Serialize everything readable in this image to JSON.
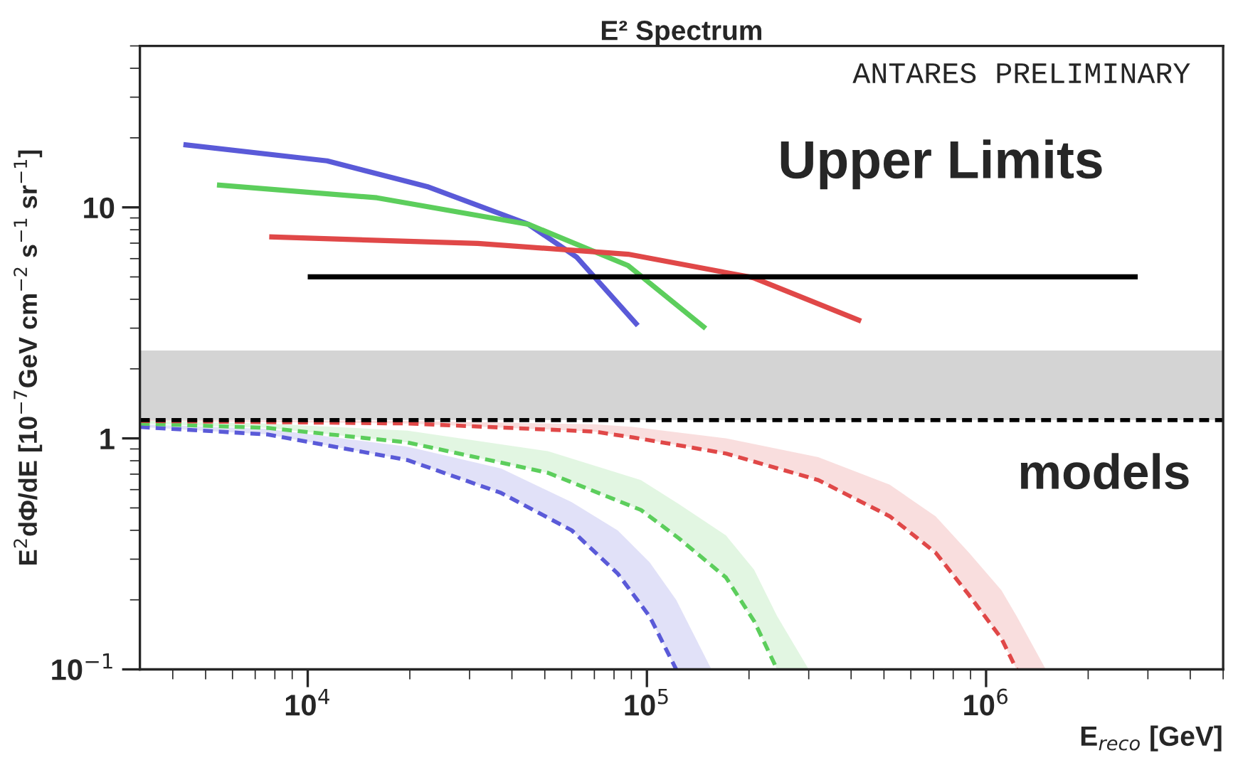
{
  "chart_data": {
    "type": "line",
    "title": "E² Spectrum",
    "xlabel": "E$_{reco}$ [GeV]",
    "ylabel": "E$^{2}$dΦ/dE [10$^{−7}$GeV cm$^{−2}$ s$^{−1}$ sr$^{−1}$]",
    "annotations": [
      "ANTARES PRELIMINARY",
      "Upper Limits",
      "models"
    ],
    "log": "xy",
    "grid": false,
    "xlim": [
      3200,
      5000000
    ],
    "ylim": [
      0.1,
      50
    ],
    "xticks": [
      {
        "value": 10000,
        "label": "10$^{4}$"
      },
      {
        "value": 100000,
        "label": "10$^{5}$"
      },
      {
        "value": 1000000,
        "label": "10$^{6}$"
      }
    ],
    "yticks": [
      {
        "value": 0.1,
        "label": "10$^{−1}$"
      },
      1,
      10
    ],
    "bands": [
      {
        "axis": "y",
        "from": 1.2,
        "to": 2.4,
        "color": "#a0a0a0"
      }
    ],
    "ref_lines": [
      {
        "axis": "y",
        "value": 1.2,
        "color": "#000000",
        "line_style": "dashed"
      }
    ],
    "series": [
      {
        "color": "#5a5ad8",
        "line_style": "solid",
        "x": [
          4300,
          11400,
          22500,
          44700,
          62000,
          94000
        ],
        "values": [
          18.7,
          15.9,
          12.3,
          8.45,
          6.1,
          3.08
        ]
      },
      {
        "color": "#5cce5c",
        "line_style": "solid",
        "x": [
          5400,
          16000,
          44700,
          88000,
          149000
        ],
        "values": [
          12.5,
          11,
          8.45,
          5.6,
          2.99
        ]
      },
      {
        "color": "#e04848",
        "line_style": "solid",
        "x": [
          7700,
          31700,
          88000,
          206000,
          428000
        ],
        "values": [
          7.45,
          6.98,
          6.27,
          4.96,
          3.22
        ]
      },
      {
        "color": "#000000",
        "line_style": "solid",
        "x": [
          10000,
          2800000
        ],
        "values": [
          5.0,
          5.0
        ]
      },
      {
        "color": "#5a5ad8",
        "line_style": "dashed",
        "x": [
          3200,
          7600,
          19700,
          37200,
          60000,
          82000,
          102000,
          122000,
          155000
        ],
        "values": [
          1.12,
          1.04,
          0.805,
          0.58,
          0.4,
          0.26,
          0.169,
          0.1,
          null
        ],
        "lower": [
          1.12,
          1.04,
          0.805,
          0.58,
          0.4,
          0.26,
          0.169,
          0.1,
          0.1
        ],
        "upper": [
          1.15,
          1.1,
          0.92,
          0.74,
          0.53,
          0.4,
          0.29,
          0.2,
          0.1
        ]
      },
      {
        "color": "#5cce5c",
        "line_style": "dashed",
        "x": [
          3200,
          7600,
          19700,
          51000,
          96000,
          124000,
          171000,
          207000,
          242000,
          300000
        ],
        "values": [
          1.16,
          1.11,
          0.96,
          0.71,
          0.49,
          0.37,
          0.25,
          0.162,
          0.1,
          null
        ],
        "lower": [
          1.16,
          1.11,
          0.96,
          0.71,
          0.49,
          0.37,
          0.25,
          0.162,
          0.1,
          0.1
        ],
        "upper": [
          1.19,
          1.16,
          1.08,
          0.88,
          0.66,
          0.52,
          0.38,
          0.27,
          0.17,
          0.1
        ]
      },
      {
        "color": "#e04848",
        "line_style": "dashed",
        "x": [
          3200,
          19700,
          70000,
          91000,
          171000,
          320000,
          520000,
          710000,
          890000,
          1110000,
          1230000,
          1500000
        ],
        "values": [
          1.19,
          1.16,
          1.07,
          1.01,
          0.86,
          0.66,
          0.46,
          0.32,
          0.21,
          0.136,
          0.1,
          null
        ],
        "lower": [
          1.19,
          1.16,
          1.07,
          1.01,
          0.86,
          0.66,
          0.46,
          0.32,
          0.21,
          0.136,
          0.1,
          0.1
        ],
        "upper": [
          1.2,
          1.19,
          1.15,
          1.12,
          1.0,
          0.83,
          0.63,
          0.46,
          0.32,
          0.22,
          0.17,
          0.1
        ]
      }
    ]
  }
}
